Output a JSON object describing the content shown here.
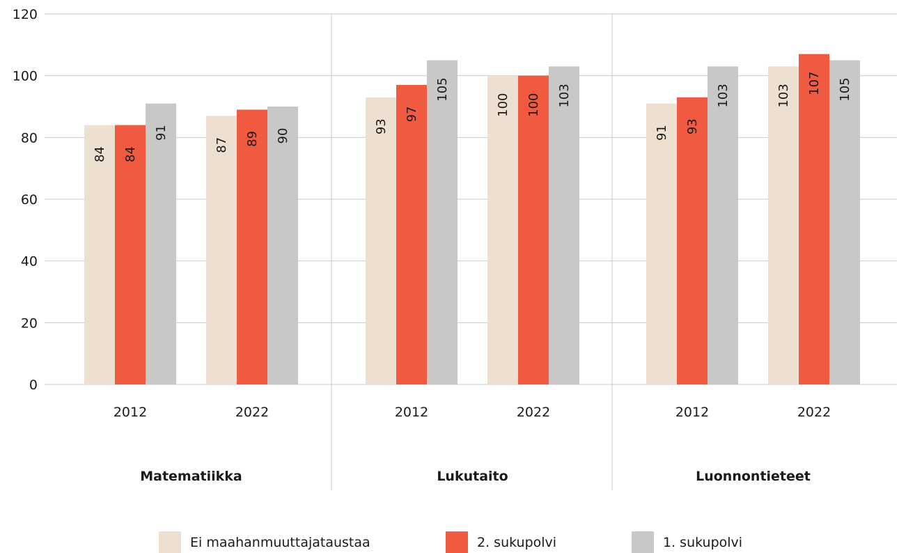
{
  "chart_data": {
    "type": "bar",
    "title": "",
    "xlabel": "",
    "ylabel": "",
    "ylim": [
      0,
      120
    ],
    "yticks": [
      0,
      20,
      40,
      60,
      80,
      100,
      120
    ],
    "grid": true,
    "legend_position": "bottom",
    "groups": [
      {
        "name": "Matematiikka",
        "years": [
          {
            "year": "2012",
            "values": [
              84,
              84,
              91
            ]
          },
          {
            "year": "2022",
            "values": [
              87,
              89,
              90
            ]
          }
        ]
      },
      {
        "name": "Lukutaito",
        "years": [
          {
            "year": "2012",
            "values": [
              93,
              97,
              105
            ]
          },
          {
            "year": "2022",
            "values": [
              100,
              100,
              103
            ]
          }
        ]
      },
      {
        "name": "Luonnontieteet",
        "years": [
          {
            "year": "2012",
            "values": [
              91,
              93,
              103
            ]
          },
          {
            "year": "2022",
            "values": [
              103,
              107,
              105
            ]
          }
        ]
      }
    ],
    "series": [
      {
        "name": "Ei maahanmuuttajataustaa",
        "color": "#ede0d0"
      },
      {
        "name": "2. sukupolvi",
        "color": "#f05a41"
      },
      {
        "name": "1. sukupolvi",
        "color": "#c8c9c7"
      }
    ]
  }
}
